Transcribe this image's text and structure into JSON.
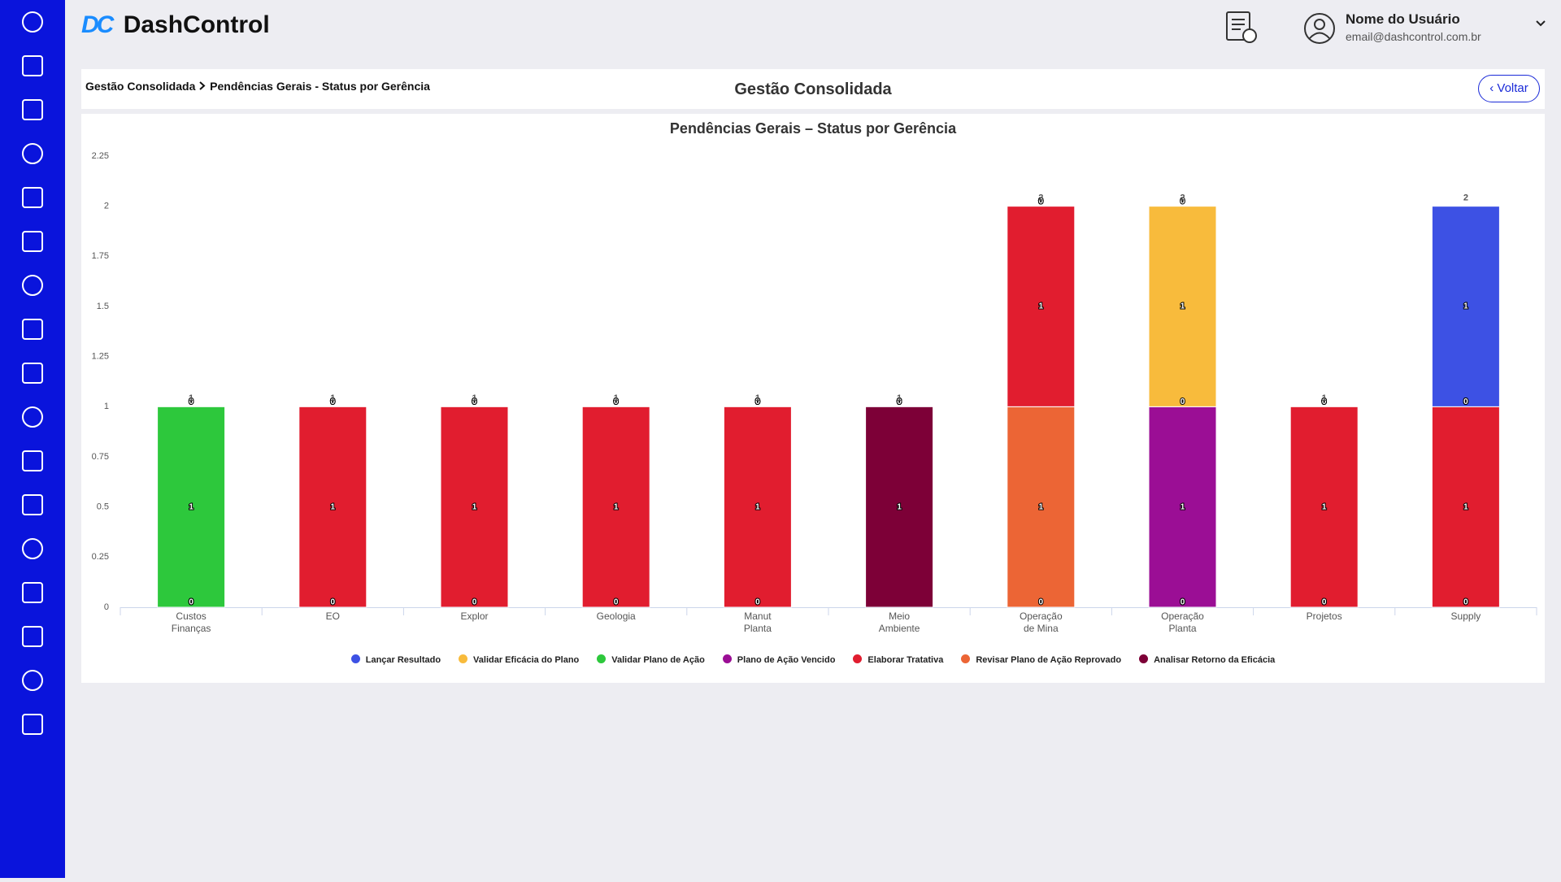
{
  "header": {
    "logo_mark": "DC",
    "logo_text": "DashControl",
    "user_name": "Nome do Usuário",
    "user_email": "email@dashcontrol.com.br"
  },
  "breadcrumb": [
    "Gestão Consolidada",
    "Pendências Gerais - Status por Gerência"
  ],
  "page_title": "Gestão Consolidada",
  "back_button": "Voltar",
  "chart_data": {
    "type": "stacked_bar",
    "title": "Pendências Gerais – Status por Gerência",
    "categories": [
      "Custos\nFinanças",
      "EO",
      "Explor",
      "Geologia",
      "Manut\nPlanta",
      "Meio\nAmbiente",
      "Operação\nde Mina",
      "Operação\nPlanta",
      "Projetos",
      "Supply"
    ],
    "series": [
      {
        "name": "Lançar Resultado",
        "color": "#3d51e4",
        "values": [
          0,
          0,
          0,
          0,
          0,
          0,
          0,
          0,
          0,
          1
        ]
      },
      {
        "name": "Validar Eficácia do Plano",
        "color": "#f8bb3c",
        "values": [
          0,
          0,
          0,
          0,
          0,
          0,
          0,
          1,
          0,
          0
        ]
      },
      {
        "name": "Validar Plano de Ação",
        "color": "#2dc83c",
        "values": [
          1,
          0,
          0,
          0,
          0,
          0,
          0,
          0,
          0,
          0
        ]
      },
      {
        "name": "Plano de Ação Vencido",
        "color": "#9b0e95",
        "values": [
          0,
          0,
          0,
          0,
          0,
          0,
          0,
          1,
          0,
          0
        ]
      },
      {
        "name": "Elaborar Tratativa",
        "color": "#e11d2f",
        "values": [
          0,
          1,
          1,
          1,
          1,
          0,
          1,
          0,
          1,
          1
        ]
      },
      {
        "name": "Revisar Plano de Ação Reprovado",
        "color": "#ec6535",
        "values": [
          0,
          0,
          0,
          0,
          0,
          0,
          1,
          0,
          0,
          0
        ]
      },
      {
        "name": "Analisar Retorno da Eficácia",
        "color": "#7d0037",
        "values": [
          0,
          0,
          0,
          0,
          0,
          1,
          0,
          0,
          0,
          0
        ]
      }
    ],
    "stack_totals": [
      1,
      1,
      1,
      1,
      1,
      1,
      2,
      2,
      1,
      2
    ],
    "ylim": [
      0,
      2.25
    ],
    "yticks": [
      0,
      0.25,
      0.5,
      0.75,
      1,
      1.25,
      1.5,
      1.75,
      2,
      2.25
    ],
    "grid": false,
    "legend": "bottom"
  }
}
